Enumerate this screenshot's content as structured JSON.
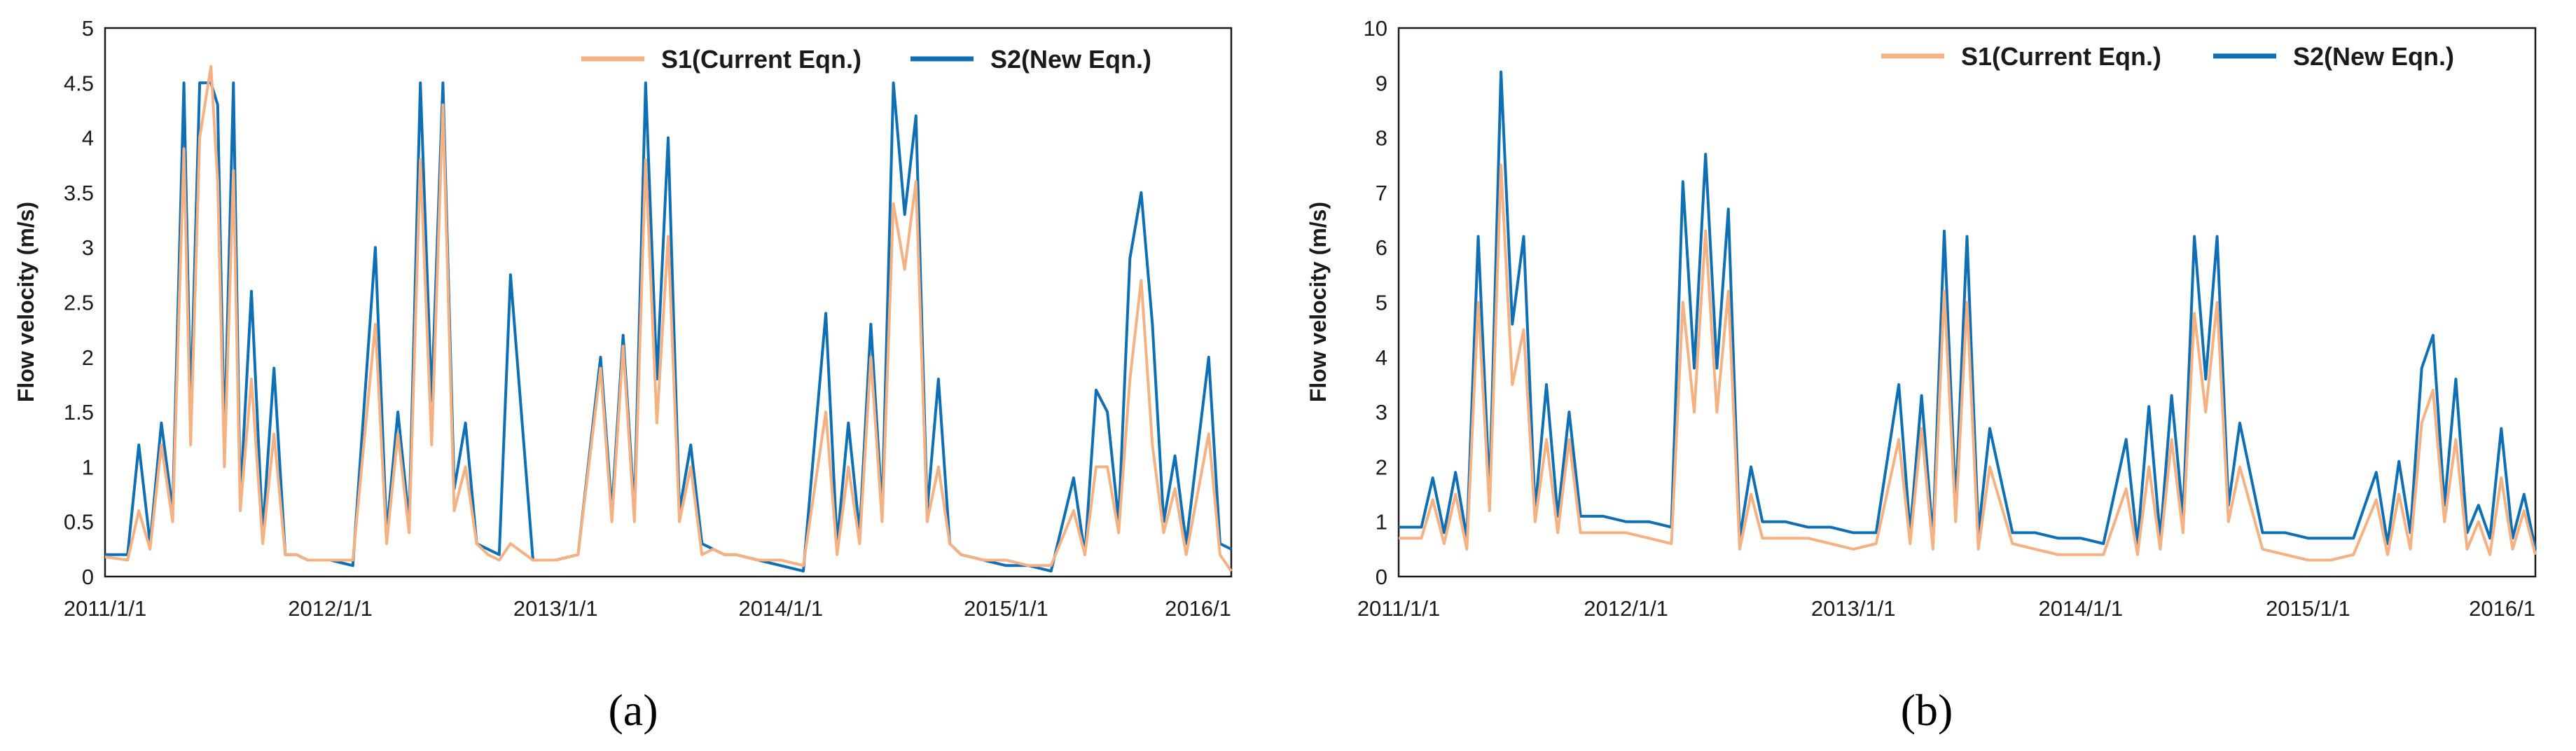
{
  "chart_data": [
    {
      "type": "line",
      "panel_label": "(a)",
      "title": "",
      "xlabel": "",
      "ylabel": "Flow velocity (m/s)",
      "xlim": [
        2011.0,
        2016.0
      ],
      "ylim": [
        0,
        5
      ],
      "yticks": [
        "0",
        "0.5",
        "1",
        "1.5",
        "2",
        "2.5",
        "3",
        "3.5",
        "4",
        "4.5",
        "5"
      ],
      "xticks": [
        {
          "t": 2011.0,
          "label": "2011/1/1"
        },
        {
          "t": 2012.0,
          "label": "2012/1/1"
        },
        {
          "t": 2013.0,
          "label": "2013/1/1"
        },
        {
          "t": 2014.0,
          "label": "2014/1/1"
        },
        {
          "t": 2015.0,
          "label": "2015/1/1"
        },
        {
          "t": 2016.0,
          "label": "2016/1"
        }
      ],
      "grid": false,
      "legend_position": "top-right",
      "series": [
        {
          "name": "S1(Current Eqn.)",
          "color": "#F6B183",
          "x": [
            2011.0,
            2011.1,
            2011.15,
            2011.2,
            2011.25,
            2011.3,
            2011.35,
            2011.38,
            2011.42,
            2011.47,
            2011.5,
            2011.53,
            2011.57,
            2011.6,
            2011.65,
            2011.7,
            2011.75,
            2011.8,
            2011.85,
            2011.9,
            2012.0,
            2012.1,
            2012.2,
            2012.25,
            2012.3,
            2012.35,
            2012.4,
            2012.45,
            2012.5,
            2012.55,
            2012.6,
            2012.65,
            2012.7,
            2012.75,
            2012.8,
            2012.9,
            2013.0,
            2013.1,
            2013.2,
            2013.25,
            2013.3,
            2013.35,
            2013.4,
            2013.45,
            2013.5,
            2013.55,
            2013.6,
            2013.65,
            2013.7,
            2013.75,
            2013.8,
            2013.9,
            2014.0,
            2014.1,
            2014.2,
            2014.25,
            2014.3,
            2014.35,
            2014.4,
            2014.45,
            2014.5,
            2014.55,
            2014.6,
            2014.65,
            2014.7,
            2014.75,
            2014.8,
            2014.9,
            2015.0,
            2015.1,
            2015.2,
            2015.3,
            2015.35,
            2015.4,
            2015.45,
            2015.5,
            2015.55,
            2015.6,
            2015.65,
            2015.7,
            2015.75,
            2015.8,
            2015.9,
            2015.95,
            2016.0
          ],
          "values": [
            0.18,
            0.15,
            0.6,
            0.25,
            1.2,
            0.5,
            3.9,
            1.2,
            4.0,
            4.65,
            3.6,
            1.0,
            3.7,
            0.6,
            1.8,
            0.3,
            1.3,
            0.2,
            0.2,
            0.15,
            0.15,
            0.15,
            2.3,
            0.3,
            1.3,
            0.4,
            3.8,
            1.2,
            4.3,
            0.6,
            1.0,
            0.3,
            0.2,
            0.15,
            0.3,
            0.15,
            0.15,
            0.2,
            1.9,
            0.5,
            2.1,
            0.5,
            3.8,
            1.4,
            3.1,
            0.5,
            1.0,
            0.2,
            0.25,
            0.2,
            0.2,
            0.15,
            0.15,
            0.1,
            1.5,
            0.2,
            1.0,
            0.3,
            2.0,
            0.5,
            3.4,
            2.8,
            3.6,
            0.5,
            1.0,
            0.3,
            0.2,
            0.15,
            0.15,
            0.1,
            0.1,
            0.6,
            0.2,
            1.0,
            1.0,
            0.4,
            1.8,
            2.7,
            1.2,
            0.4,
            0.8,
            0.2,
            1.3,
            0.2,
            0.05
          ]
        },
        {
          "name": "S2(New Eqn.)",
          "color": "#0F6FB5",
          "x": [
            2011.0,
            2011.1,
            2011.15,
            2011.2,
            2011.25,
            2011.3,
            2011.35,
            2011.38,
            2011.42,
            2011.47,
            2011.5,
            2011.53,
            2011.57,
            2011.6,
            2011.65,
            2011.7,
            2011.75,
            2011.8,
            2011.85,
            2011.9,
            2012.0,
            2012.1,
            2012.2,
            2012.25,
            2012.3,
            2012.35,
            2012.4,
            2012.45,
            2012.5,
            2012.55,
            2012.6,
            2012.65,
            2012.7,
            2012.75,
            2012.8,
            2012.9,
            2013.0,
            2013.1,
            2013.2,
            2013.25,
            2013.3,
            2013.35,
            2013.4,
            2013.45,
            2013.5,
            2013.55,
            2013.6,
            2013.65,
            2013.7,
            2013.75,
            2013.8,
            2013.9,
            2014.0,
            2014.1,
            2014.2,
            2014.25,
            2014.3,
            2014.35,
            2014.4,
            2014.45,
            2014.5,
            2014.55,
            2014.6,
            2014.65,
            2014.7,
            2014.75,
            2014.8,
            2014.9,
            2015.0,
            2015.1,
            2015.2,
            2015.3,
            2015.35,
            2015.4,
            2015.45,
            2015.5,
            2015.55,
            2015.6,
            2015.65,
            2015.7,
            2015.75,
            2015.8,
            2015.9,
            2015.95,
            2016.0
          ],
          "values": [
            0.2,
            0.2,
            1.2,
            0.3,
            1.4,
            0.6,
            4.5,
            1.5,
            4.5,
            4.5,
            4.3,
            1.2,
            4.5,
            0.7,
            2.6,
            0.4,
            1.9,
            0.2,
            0.2,
            0.15,
            0.15,
            0.1,
            3.0,
            0.4,
            1.5,
            0.5,
            4.5,
            1.6,
            4.5,
            0.8,
            1.4,
            0.3,
            0.25,
            0.2,
            2.75,
            0.15,
            0.15,
            0.2,
            2.0,
            0.6,
            2.2,
            0.6,
            4.5,
            1.8,
            4.0,
            0.6,
            1.2,
            0.3,
            0.25,
            0.2,
            0.2,
            0.15,
            0.1,
            0.05,
            2.4,
            0.3,
            1.4,
            0.4,
            2.3,
            0.6,
            4.5,
            3.3,
            4.2,
            0.6,
            1.8,
            0.3,
            0.2,
            0.15,
            0.1,
            0.1,
            0.05,
            0.9,
            0.2,
            1.7,
            1.5,
            0.5,
            2.9,
            3.5,
            2.3,
            0.5,
            1.1,
            0.3,
            2.0,
            0.3,
            0.25
          ]
        }
      ]
    },
    {
      "type": "line",
      "panel_label": "(b)",
      "title": "",
      "xlabel": "",
      "ylabel": "Flow velocity (m/s)",
      "xlim": [
        2011.0,
        2016.0
      ],
      "ylim": [
        0,
        10
      ],
      "yticks": [
        "0",
        "1",
        "2",
        "3",
        "4",
        "5",
        "6",
        "7",
        "8",
        "9",
        "10"
      ],
      "xticks": [
        {
          "t": 2011.0,
          "label": "2011/1/1"
        },
        {
          "t": 2012.0,
          "label": "2012/1/1"
        },
        {
          "t": 2013.0,
          "label": "2013/1/1"
        },
        {
          "t": 2014.0,
          "label": "2014/1/1"
        },
        {
          "t": 2015.0,
          "label": "2015/1/1"
        },
        {
          "t": 2016.0,
          "label": "2016/1"
        }
      ],
      "grid": false,
      "legend_position": "top-right",
      "series": [
        {
          "name": "S1(Current Eqn.)",
          "color": "#F6B183",
          "x": [
            2011.0,
            2011.1,
            2011.15,
            2011.2,
            2011.25,
            2011.3,
            2011.35,
            2011.4,
            2011.45,
            2011.5,
            2011.55,
            2011.6,
            2011.65,
            2011.7,
            2011.75,
            2011.8,
            2011.9,
            2012.0,
            2012.1,
            2012.2,
            2012.25,
            2012.3,
            2012.35,
            2012.4,
            2012.45,
            2012.5,
            2012.55,
            2012.6,
            2012.7,
            2012.8,
            2012.9,
            2013.0,
            2013.1,
            2013.2,
            2013.25,
            2013.3,
            2013.35,
            2013.4,
            2013.45,
            2013.5,
            2013.55,
            2013.6,
            2013.7,
            2013.8,
            2013.9,
            2014.0,
            2014.1,
            2014.2,
            2014.25,
            2014.3,
            2014.35,
            2014.4,
            2014.45,
            2014.5,
            2014.55,
            2014.6,
            2014.65,
            2014.7,
            2014.8,
            2014.9,
            2015.0,
            2015.1,
            2015.2,
            2015.3,
            2015.35,
            2015.4,
            2015.45,
            2015.5,
            2015.55,
            2015.6,
            2015.65,
            2015.7,
            2015.75,
            2015.8,
            2015.85,
            2015.9,
            2015.95,
            2016.0
          ],
          "values": [
            0.7,
            0.7,
            1.4,
            0.6,
            1.5,
            0.5,
            5.0,
            1.2,
            7.5,
            3.5,
            4.5,
            1.0,
            2.5,
            0.8,
            2.5,
            0.8,
            0.8,
            0.8,
            0.7,
            0.6,
            5.0,
            3.0,
            6.3,
            3.0,
            5.2,
            0.5,
            1.5,
            0.7,
            0.7,
            0.7,
            0.6,
            0.5,
            0.6,
            2.5,
            0.6,
            2.7,
            0.5,
            5.2,
            1.0,
            5.0,
            0.5,
            2.0,
            0.6,
            0.5,
            0.4,
            0.4,
            0.4,
            1.6,
            0.4,
            2.0,
            0.5,
            2.5,
            0.8,
            4.8,
            3.0,
            5.0,
            1.0,
            2.0,
            0.5,
            0.4,
            0.3,
            0.3,
            0.4,
            1.4,
            0.4,
            1.5,
            0.5,
            2.8,
            3.4,
            1.0,
            2.5,
            0.5,
            1.0,
            0.4,
            1.8,
            0.5,
            1.2,
            0.4
          ]
        },
        {
          "name": "S2(New Eqn.)",
          "color": "#0F6FB5",
          "x": [
            2011.0,
            2011.1,
            2011.15,
            2011.2,
            2011.25,
            2011.3,
            2011.35,
            2011.4,
            2011.45,
            2011.5,
            2011.55,
            2011.6,
            2011.65,
            2011.7,
            2011.75,
            2011.8,
            2011.9,
            2012.0,
            2012.1,
            2012.2,
            2012.25,
            2012.3,
            2012.35,
            2012.4,
            2012.45,
            2012.5,
            2012.55,
            2012.6,
            2012.7,
            2012.8,
            2012.9,
            2013.0,
            2013.1,
            2013.2,
            2013.25,
            2013.3,
            2013.35,
            2013.4,
            2013.45,
            2013.5,
            2013.55,
            2013.6,
            2013.7,
            2013.8,
            2013.9,
            2014.0,
            2014.1,
            2014.2,
            2014.25,
            2014.3,
            2014.35,
            2014.4,
            2014.45,
            2014.5,
            2014.55,
            2014.6,
            2014.65,
            2014.7,
            2014.8,
            2014.9,
            2015.0,
            2015.1,
            2015.2,
            2015.3,
            2015.35,
            2015.4,
            2015.45,
            2015.5,
            2015.55,
            2015.6,
            2015.65,
            2015.7,
            2015.75,
            2015.8,
            2015.85,
            2015.9,
            2015.95,
            2016.0
          ],
          "values": [
            0.9,
            0.9,
            1.8,
            0.8,
            1.9,
            0.7,
            6.2,
            1.5,
            9.2,
            4.6,
            6.2,
            1.2,
            3.5,
            1.1,
            3.0,
            1.1,
            1.1,
            1.0,
            1.0,
            0.9,
            7.2,
            3.8,
            7.7,
            3.8,
            6.7,
            0.7,
            2.0,
            1.0,
            1.0,
            0.9,
            0.9,
            0.8,
            0.8,
            3.5,
            0.8,
            3.3,
            0.7,
            6.3,
            1.3,
            6.2,
            0.8,
            2.7,
            0.8,
            0.8,
            0.7,
            0.7,
            0.6,
            2.5,
            0.6,
            3.1,
            0.7,
            3.3,
            1.1,
            6.2,
            3.6,
            6.2,
            1.3,
            2.8,
            0.8,
            0.8,
            0.7,
            0.7,
            0.7,
            1.9,
            0.6,
            2.1,
            0.8,
            3.8,
            4.4,
            1.3,
            3.6,
            0.8,
            1.3,
            0.7,
            2.7,
            0.7,
            1.5,
            0.5
          ]
        }
      ]
    }
  ]
}
